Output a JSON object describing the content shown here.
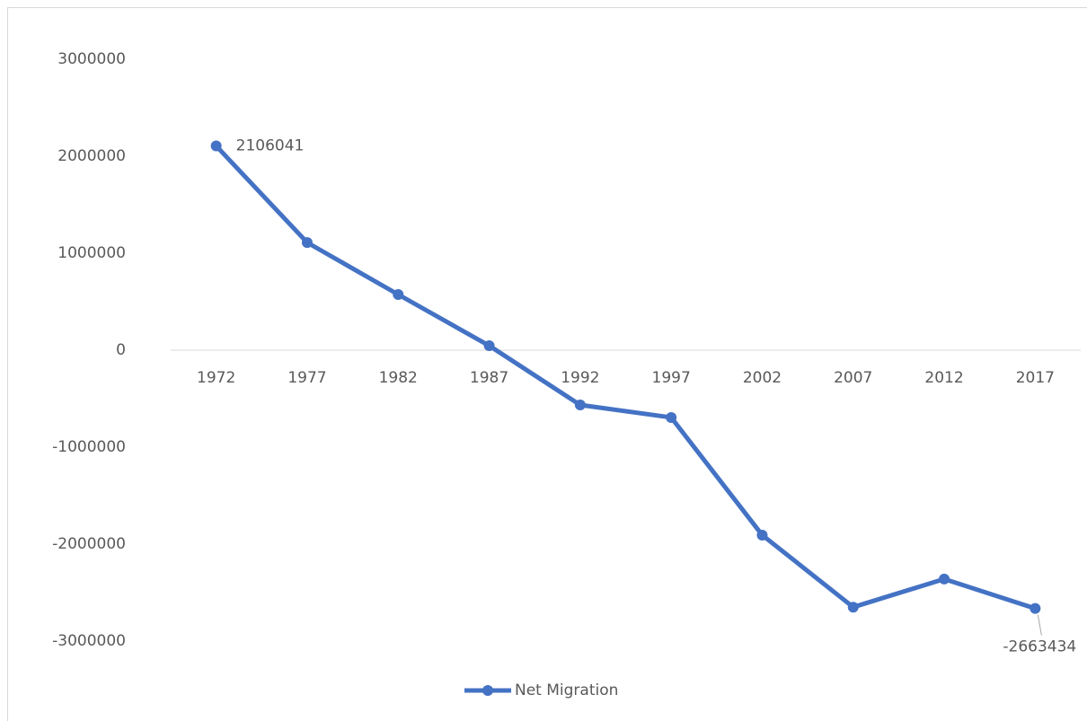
{
  "chart_data": {
    "type": "line",
    "categories": [
      "1972",
      "1977",
      "1982",
      "1987",
      "1992",
      "1997",
      "2002",
      "2007",
      "2012",
      "2017"
    ],
    "series": [
      {
        "name": "Net Migration",
        "color": "#4472c4",
        "values": [
          2106041,
          1110000,
          574000,
          46000,
          -565000,
          -694000,
          -1907000,
          -2650000,
          -2360000,
          -2663434
        ]
      }
    ],
    "ylim": [
      -3000000,
      3000000
    ],
    "yticks": [
      -3000000,
      -2000000,
      -1000000,
      0,
      1000000,
      2000000,
      3000000
    ],
    "grid": false,
    "legend": "bottom"
  }
}
